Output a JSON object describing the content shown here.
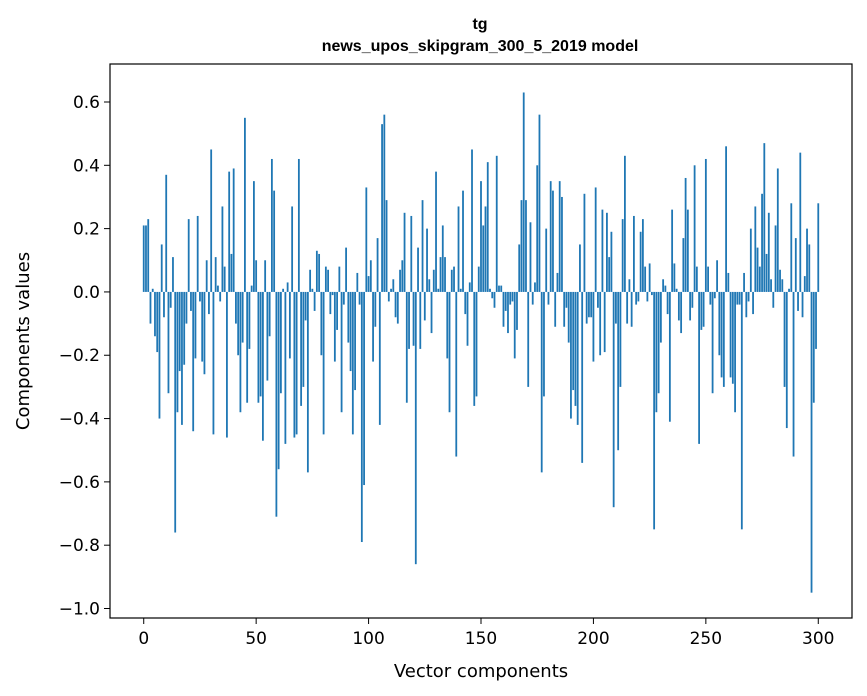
{
  "chart_data": {
    "type": "bar",
    "title": "tg",
    "subtitle": "news_upos_skipgram_300_5_2019 model",
    "xlabel": "Vector components",
    "ylabel": "Components values",
    "xlim": [
      -15,
      315
    ],
    "ylim": [
      -1.03,
      0.72
    ],
    "xticks": [
      0,
      50,
      100,
      150,
      200,
      250,
      300
    ],
    "yticks": [
      -1.0,
      -0.8,
      -0.6,
      -0.4,
      -0.2,
      0.0,
      0.2,
      0.4,
      0.6
    ],
    "ytick_labels": [
      "−1.0",
      "−0.8",
      "−0.6",
      "−0.4",
      "−0.2",
      "0.0",
      "0.2",
      "0.4",
      "0.6"
    ],
    "bar_color": "#1f77b4",
    "grid": false,
    "values": [
      0.21,
      0.21,
      0.23,
      -0.1,
      0.01,
      -0.14,
      -0.19,
      -0.4,
      0.15,
      -0.08,
      0.37,
      -0.32,
      -0.05,
      0.11,
      -0.76,
      -0.38,
      -0.25,
      -0.42,
      -0.23,
      -0.1,
      0.23,
      -0.06,
      -0.44,
      -0.21,
      0.24,
      -0.03,
      -0.22,
      -0.26,
      0.1,
      -0.07,
      0.45,
      -0.45,
      0.11,
      0.02,
      -0.03,
      0.27,
      0.08,
      -0.46,
      0.38,
      0.12,
      0.39,
      -0.1,
      -0.2,
      -0.38,
      -0.16,
      0.55,
      -0.35,
      -0.18,
      0.02,
      0.35,
      0.1,
      -0.35,
      -0.33,
      -0.47,
      0.1,
      -0.28,
      -0.14,
      0.42,
      0.32,
      -0.71,
      -0.56,
      -0.32,
      0.01,
      -0.48,
      0.03,
      -0.21,
      0.27,
      -0.46,
      -0.45,
      0.42,
      -0.36,
      -0.3,
      -0.09,
      -0.57,
      0.07,
      0.01,
      -0.06,
      0.13,
      0.12,
      -0.2,
      -0.45,
      0.08,
      0.07,
      -0.07,
      -0.01,
      -0.22,
      -0.12,
      0.08,
      -0.38,
      -0.04,
      0.14,
      -0.16,
      -0.25,
      -0.45,
      -0.31,
      0.06,
      -0.04,
      -0.79,
      -0.61,
      0.33,
      0.05,
      0.1,
      -0.22,
      -0.11,
      0.17,
      -0.42,
      0.53,
      0.56,
      0.29,
      -0.03,
      0.01,
      0.04,
      -0.08,
      -0.1,
      0.07,
      0.1,
      0.25,
      -0.35,
      -0.18,
      0.24,
      -0.17,
      -0.86,
      0.14,
      -0.18,
      0.29,
      -0.09,
      0.2,
      0.04,
      -0.13,
      0.07,
      0.38,
      0.01,
      0.11,
      0.21,
      0.11,
      -0.21,
      -0.38,
      0.07,
      0.08,
      -0.52,
      0.27,
      0.01,
      0.32,
      -0.07,
      -0.17,
      0.03,
      0.45,
      -0.36,
      -0.33,
      0.08,
      0.35,
      0.21,
      0.27,
      0.41,
      0.01,
      -0.02,
      -0.05,
      0.43,
      0.02,
      0.02,
      -0.11,
      -0.06,
      -0.13,
      -0.04,
      -0.03,
      -0.21,
      -0.12,
      0.15,
      0.29,
      0.63,
      0.29,
      -0.3,
      0.22,
      -0.04,
      0.03,
      0.4,
      0.56,
      -0.57,
      -0.33,
      0.2,
      -0.04,
      0.35,
      0.32,
      -0.11,
      0.06,
      0.35,
      0.3,
      -0.11,
      -0.05,
      -0.16,
      -0.4,
      -0.31,
      -0.36,
      -0.42,
      0.15,
      -0.54,
      0.31,
      -0.1,
      -0.08,
      -0.08,
      -0.22,
      0.33,
      -0.05,
      -0.2,
      0.26,
      -0.19,
      0.25,
      0.11,
      0.19,
      -0.68,
      -0.1,
      -0.5,
      -0.3,
      0.23,
      0.43,
      -0.1,
      0.04,
      -0.11,
      0.24,
      -0.04,
      -0.03,
      0.19,
      0.23,
      0.08,
      -0.03,
      0.09,
      -0.01,
      -0.75,
      -0.38,
      -0.32,
      -0.16,
      0.04,
      0.02,
      -0.07,
      -0.41,
      0.26,
      0.09,
      0.01,
      -0.09,
      -0.13,
      0.17,
      0.36,
      0.26,
      -0.09,
      -0.05,
      0.4,
      0.08,
      -0.48,
      -0.12,
      -0.11,
      0.42,
      0.08,
      -0.04,
      -0.32,
      -0.02,
      0.1,
      -0.2,
      -0.27,
      -0.3,
      0.46,
      0.06,
      -0.27,
      -0.29,
      -0.38,
      -0.04,
      -0.04,
      -0.75,
      0.06,
      -0.08,
      -0.03,
      0.2,
      -0.07,
      0.27,
      0.14,
      0.08,
      0.31,
      0.47,
      0.12,
      0.25,
      0.04,
      -0.05,
      0.21,
      0.39,
      0.07,
      0.04,
      -0.3,
      -0.43,
      0.01,
      0.28,
      -0.52,
      0.17,
      -0.06,
      0.44,
      -0.08,
      0.05,
      0.2,
      0.15,
      -0.95,
      -0.35,
      -0.18,
      0.28
    ]
  }
}
